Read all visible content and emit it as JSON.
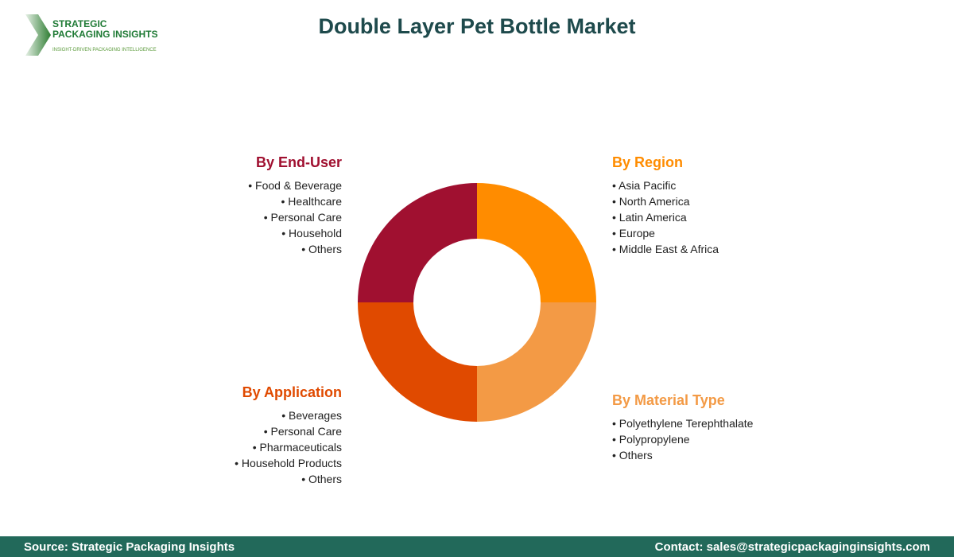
{
  "title": "Double Layer Pet Bottle Market",
  "logo": {
    "line1": "STRATEGIC",
    "line2": "PACKAGING INSIGHTS",
    "tagline": "INSIGHT-DRIVEN PACKAGING INTELLIGENCE"
  },
  "segments": [
    {
      "heading": "By End-User",
      "color": "#a01030",
      "items": [
        "Food & Beverage",
        "Healthcare",
        "Personal Care",
        "Household",
        "Others"
      ]
    },
    {
      "heading": "By Region",
      "color": "#ff8c00",
      "items": [
        "Asia Pacific",
        "North America",
        "Latin America",
        "Europe",
        "Middle East & Africa"
      ]
    },
    {
      "heading": "By Application",
      "color": "#e04a00",
      "items": [
        "Beverages",
        "Personal Care",
        "Pharmaceuticals",
        "Household Products",
        "Others"
      ]
    },
    {
      "heading": "By Material Type",
      "color": "#f39a45",
      "items": [
        "Polyethylene Terephthalate",
        "Polypropylene",
        "Others"
      ]
    }
  ],
  "footer": {
    "source": "Source: Strategic Packaging Insights",
    "contact": "Contact: sales@strategicpackaginginsights.com"
  }
}
